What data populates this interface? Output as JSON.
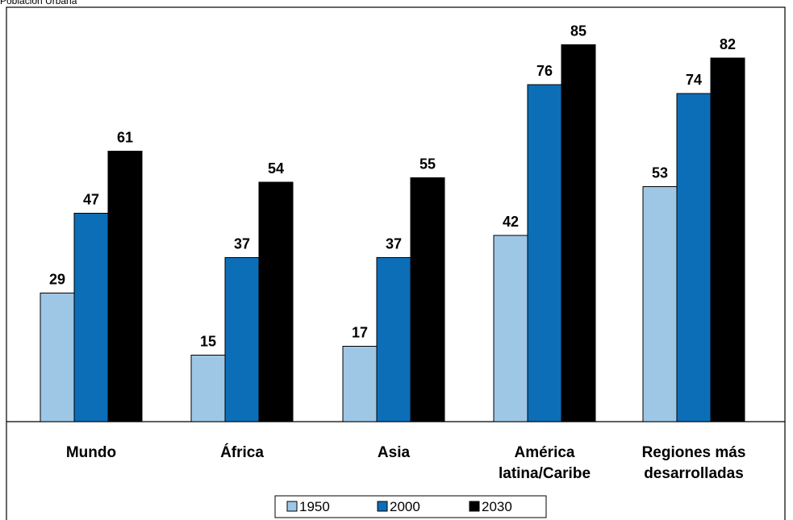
{
  "title": "Población Urbana",
  "chart_data": {
    "type": "bar",
    "title": "Población Urbana",
    "categories": [
      [
        "Mundo"
      ],
      [
        "África"
      ],
      [
        "Asia"
      ],
      [
        "América",
        "latina/Caribe"
      ],
      [
        "Regiones más",
        "desarrolladas"
      ]
    ],
    "series": [
      {
        "name": "1950",
        "color": "#9ec7e6",
        "values": [
          29,
          15,
          17,
          42,
          53
        ]
      },
      {
        "name": "2000",
        "color": "#0d6eb8",
        "values": [
          47,
          37,
          37,
          76,
          74
        ]
      },
      {
        "name": "2030",
        "color": "#000000",
        "values": [
          61,
          54,
          55,
          85,
          82
        ]
      }
    ],
    "ylim": [
      0,
      92
    ],
    "grid": false,
    "legend": "bottom"
  }
}
